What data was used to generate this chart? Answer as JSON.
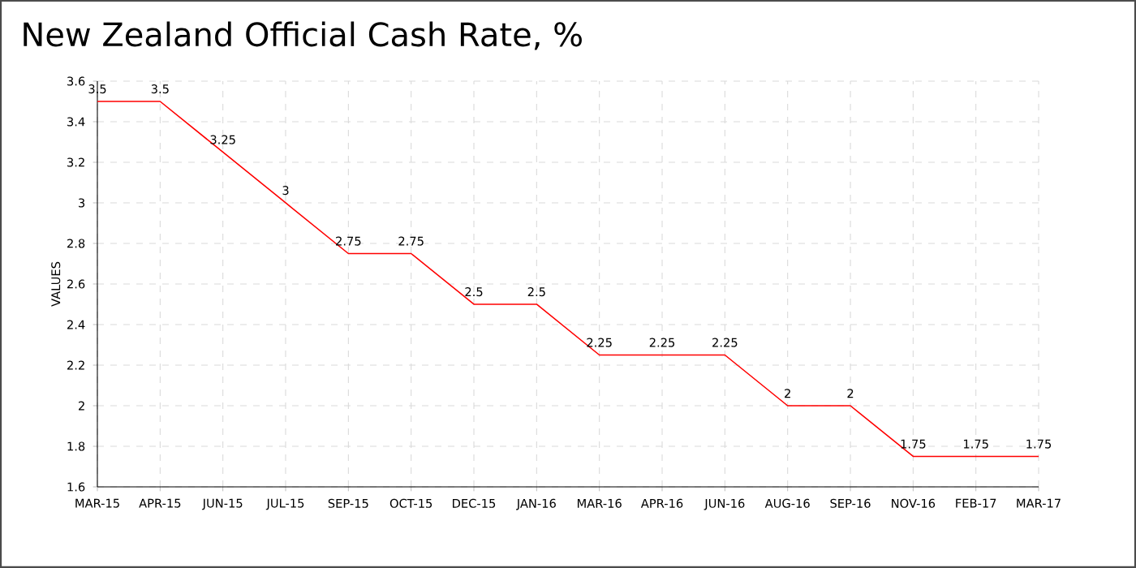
{
  "chart_data": {
    "type": "line",
    "title": "New Zealand Official Cash Rate, %",
    "ylabel": "VALUES",
    "categories": [
      "MAR-15",
      "APR-15",
      "JUN-15",
      "JUL-15",
      "SEP-15",
      "OCT-15",
      "DEC-15",
      "JAN-16",
      "MAR-16",
      "APR-16",
      "JUN-16",
      "AUG-16",
      "SEP-16",
      "NOV-16",
      "FEB-17",
      "MAR-17"
    ],
    "values": [
      3.5,
      3.5,
      3.25,
      3,
      2.75,
      2.75,
      2.5,
      2.5,
      2.25,
      2.25,
      2.25,
      2,
      2,
      1.75,
      1.75,
      1.75
    ],
    "color": "#ff0000",
    "ylim": [
      1.6,
      3.6
    ],
    "yticks": [
      1.6,
      1.8,
      2,
      2.2,
      2.4,
      2.6,
      2.8,
      3,
      3.2,
      3.4,
      3.6
    ],
    "grid": true,
    "data_labels": true
  }
}
